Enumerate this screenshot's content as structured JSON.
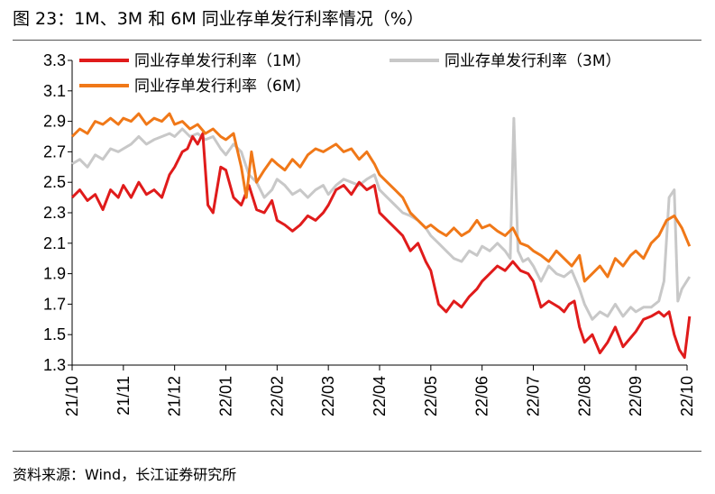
{
  "title": "图 23：1M、3M 和 6M 同业存单发行利率情况（%）",
  "source": "资料来源：Wind，长江证券研究所",
  "chart_data": {
    "type": "line",
    "title": "图 23：1M、3M 和 6M 同业存单发行利率情况（%）",
    "xlabel": "",
    "ylabel": "",
    "ylim": [
      1.3,
      3.3
    ],
    "yticks": [
      "3.3",
      "3.1",
      "2.9",
      "2.7",
      "2.5",
      "2.3",
      "2.1",
      "1.9",
      "1.7",
      "1.5",
      "1.3"
    ],
    "categories": [
      "21/10",
      "21/11",
      "21/12",
      "22/01",
      "22/02",
      "22/03",
      "22/04",
      "22/05",
      "22/06",
      "22/07",
      "22/08",
      "22/09",
      "22/10"
    ],
    "grid": false,
    "legend_position": "top",
    "series": [
      {
        "name": "同业存单发行利率（1M）",
        "color": "#e01b1b",
        "x": [
          0.0,
          0.15,
          0.3,
          0.45,
          0.6,
          0.75,
          0.9,
          1.0,
          1.15,
          1.3,
          1.45,
          1.6,
          1.75,
          1.9,
          2.0,
          2.15,
          2.25,
          2.35,
          2.45,
          2.55,
          2.65,
          2.75,
          2.9,
          3.0,
          3.15,
          3.3,
          3.45,
          3.6,
          3.75,
          3.9,
          4.0,
          4.15,
          4.3,
          4.45,
          4.6,
          4.75,
          4.9,
          5.0,
          5.15,
          5.3,
          5.45,
          5.6,
          5.75,
          5.9,
          6.0,
          6.15,
          6.3,
          6.45,
          6.6,
          6.75,
          6.9,
          7.0,
          7.15,
          7.3,
          7.45,
          7.6,
          7.75,
          7.9,
          8.0,
          8.15,
          8.3,
          8.45,
          8.6,
          8.75,
          8.9,
          9.0,
          9.15,
          9.3,
          9.4,
          9.5,
          9.6,
          9.7,
          9.8,
          9.9,
          10.0,
          10.15,
          10.3,
          10.45,
          10.6,
          10.75,
          10.9,
          11.0,
          11.15,
          11.3,
          11.45,
          11.55,
          11.65,
          11.75,
          11.85,
          11.95,
          12.05
        ],
        "values": [
          2.4,
          2.45,
          2.38,
          2.42,
          2.32,
          2.45,
          2.4,
          2.48,
          2.4,
          2.5,
          2.42,
          2.45,
          2.4,
          2.55,
          2.6,
          2.7,
          2.72,
          2.8,
          2.75,
          2.82,
          2.35,
          2.3,
          2.6,
          2.58,
          2.4,
          2.35,
          2.48,
          2.32,
          2.3,
          2.38,
          2.25,
          2.22,
          2.18,
          2.22,
          2.28,
          2.25,
          2.3,
          2.35,
          2.45,
          2.48,
          2.42,
          2.5,
          2.45,
          2.48,
          2.3,
          2.25,
          2.2,
          2.15,
          2.05,
          2.1,
          1.98,
          1.92,
          1.7,
          1.65,
          1.72,
          1.68,
          1.75,
          1.8,
          1.85,
          1.9,
          1.95,
          1.92,
          1.98,
          1.92,
          1.9,
          1.85,
          1.68,
          1.72,
          1.7,
          1.68,
          1.65,
          1.7,
          1.72,
          1.55,
          1.45,
          1.5,
          1.38,
          1.45,
          1.55,
          1.42,
          1.48,
          1.52,
          1.6,
          1.62,
          1.65,
          1.62,
          1.65,
          1.5,
          1.4,
          1.35,
          1.62
        ]
      },
      {
        "name": "同业存单发行利率（3M）",
        "color": "#c8c8c8",
        "x": [
          0.0,
          0.15,
          0.3,
          0.45,
          0.6,
          0.75,
          0.9,
          1.0,
          1.15,
          1.3,
          1.45,
          1.6,
          1.75,
          1.9,
          2.0,
          2.15,
          2.3,
          2.45,
          2.6,
          2.75,
          2.9,
          3.0,
          3.15,
          3.3,
          3.45,
          3.6,
          3.75,
          3.9,
          4.0,
          4.15,
          4.3,
          4.45,
          4.6,
          4.75,
          4.9,
          5.0,
          5.15,
          5.3,
          5.45,
          5.6,
          5.75,
          5.9,
          6.0,
          6.15,
          6.3,
          6.45,
          6.6,
          6.75,
          6.9,
          7.0,
          7.15,
          7.3,
          7.45,
          7.6,
          7.75,
          7.9,
          8.0,
          8.15,
          8.3,
          8.45,
          8.55,
          8.62,
          8.7,
          8.8,
          8.9,
          9.0,
          9.15,
          9.3,
          9.45,
          9.6,
          9.75,
          9.9,
          10.0,
          10.15,
          10.3,
          10.45,
          10.6,
          10.75,
          10.9,
          11.0,
          11.15,
          11.3,
          11.45,
          11.55,
          11.65,
          11.75,
          11.82,
          11.9,
          12.05
        ],
        "values": [
          2.62,
          2.65,
          2.6,
          2.68,
          2.65,
          2.72,
          2.7,
          2.72,
          2.75,
          2.8,
          2.75,
          2.78,
          2.8,
          2.82,
          2.8,
          2.85,
          2.8,
          2.82,
          2.78,
          2.8,
          2.72,
          2.68,
          2.75,
          2.7,
          2.55,
          2.5,
          2.4,
          2.45,
          2.52,
          2.48,
          2.42,
          2.45,
          2.4,
          2.45,
          2.48,
          2.42,
          2.48,
          2.52,
          2.5,
          2.48,
          2.52,
          2.55,
          2.45,
          2.4,
          2.35,
          2.3,
          2.28,
          2.25,
          2.2,
          2.15,
          2.1,
          2.05,
          2.0,
          1.98,
          2.05,
          2.02,
          2.08,
          2.05,
          2.1,
          2.05,
          2.0,
          2.92,
          2.05,
          1.98,
          2.0,
          1.95,
          1.85,
          1.95,
          1.9,
          1.88,
          1.92,
          1.8,
          1.7,
          1.6,
          1.65,
          1.62,
          1.7,
          1.62,
          1.68,
          1.65,
          1.68,
          1.68,
          1.72,
          1.85,
          2.4,
          2.45,
          1.72,
          1.8,
          1.88
        ]
      },
      {
        "name": "同业存单发行利率（6M）",
        "color": "#f07818",
        "x": [
          0.0,
          0.15,
          0.3,
          0.45,
          0.6,
          0.75,
          0.9,
          1.0,
          1.15,
          1.3,
          1.45,
          1.6,
          1.75,
          1.9,
          2.0,
          2.15,
          2.3,
          2.45,
          2.6,
          2.75,
          2.9,
          3.0,
          3.15,
          3.3,
          3.4,
          3.5,
          3.6,
          3.75,
          3.9,
          4.0,
          4.15,
          4.3,
          4.45,
          4.6,
          4.75,
          4.9,
          5.0,
          5.15,
          5.3,
          5.45,
          5.6,
          5.75,
          5.9,
          6.0,
          6.15,
          6.3,
          6.45,
          6.6,
          6.75,
          6.9,
          7.0,
          7.15,
          7.3,
          7.45,
          7.6,
          7.75,
          7.9,
          8.0,
          8.15,
          8.3,
          8.45,
          8.6,
          8.75,
          8.9,
          9.0,
          9.15,
          9.3,
          9.45,
          9.6,
          9.75,
          9.9,
          10.0,
          10.15,
          10.3,
          10.45,
          10.6,
          10.75,
          10.9,
          11.0,
          11.15,
          11.3,
          11.45,
          11.6,
          11.75,
          11.9,
          12.05
        ],
        "values": [
          2.8,
          2.85,
          2.82,
          2.9,
          2.88,
          2.92,
          2.88,
          2.92,
          2.9,
          2.95,
          2.88,
          2.92,
          2.9,
          2.95,
          2.88,
          2.9,
          2.85,
          2.88,
          2.82,
          2.85,
          2.8,
          2.78,
          2.82,
          2.6,
          2.4,
          2.7,
          2.5,
          2.58,
          2.65,
          2.62,
          2.58,
          2.65,
          2.6,
          2.68,
          2.72,
          2.7,
          2.72,
          2.75,
          2.7,
          2.72,
          2.65,
          2.7,
          2.62,
          2.55,
          2.5,
          2.45,
          2.4,
          2.3,
          2.25,
          2.2,
          2.22,
          2.18,
          2.15,
          2.2,
          2.15,
          2.18,
          2.25,
          2.2,
          2.22,
          2.18,
          2.15,
          2.2,
          2.1,
          2.08,
          2.05,
          2.02,
          1.98,
          2.05,
          2.0,
          1.95,
          2.02,
          1.85,
          1.9,
          1.95,
          1.88,
          2.0,
          1.95,
          2.02,
          2.05,
          2.0,
          2.1,
          2.15,
          2.25,
          2.28,
          2.2,
          2.08
        ]
      }
    ]
  }
}
